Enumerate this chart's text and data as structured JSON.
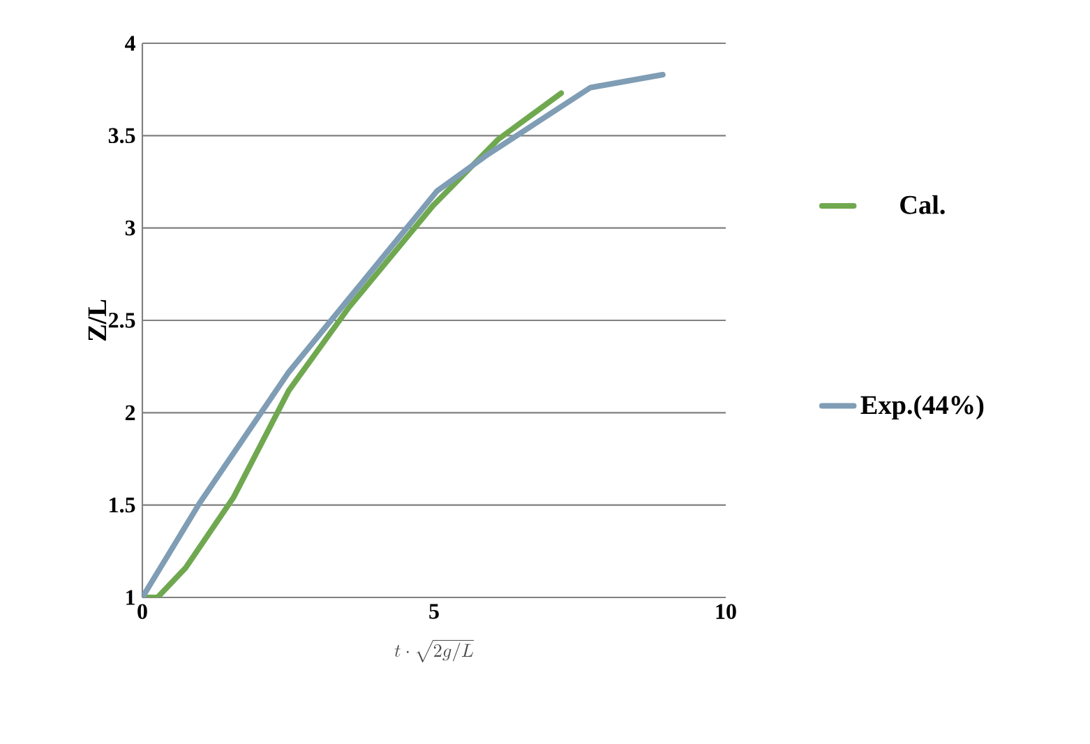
{
  "chart_data": {
    "type": "line",
    "xlabel": "t\\cdot\\sqrt{2g/L}",
    "ylabel": "Z/L",
    "xlim": [
      0,
      10
    ],
    "xticks": [
      0,
      5,
      10
    ],
    "ylim": [
      1,
      4
    ],
    "yticks": [
      1,
      1.5,
      2,
      2.5,
      3,
      3.5,
      4
    ],
    "grid": "y",
    "legend": "right",
    "marker": "none",
    "line_style": "solid",
    "series": [
      {
        "name": "Cal.",
        "color": "#70a850",
        "x": [
          0,
          0.26,
          0.74,
          1.56,
          2.51,
          3.54,
          4.98,
          6.1,
          7.18
        ],
        "values": [
          1.0,
          1.0,
          1.16,
          1.54,
          2.12,
          2.57,
          3.12,
          3.48,
          3.73
        ]
      },
      {
        "name": "Exp.(44%)",
        "color": "#7f9db5",
        "x": [
          0,
          0.98,
          2.51,
          5.05,
          5.93,
          7.68,
          8.92
        ],
        "values": [
          1.0,
          1.51,
          2.22,
          3.2,
          3.4,
          3.76,
          3.83
        ]
      }
    ]
  }
}
